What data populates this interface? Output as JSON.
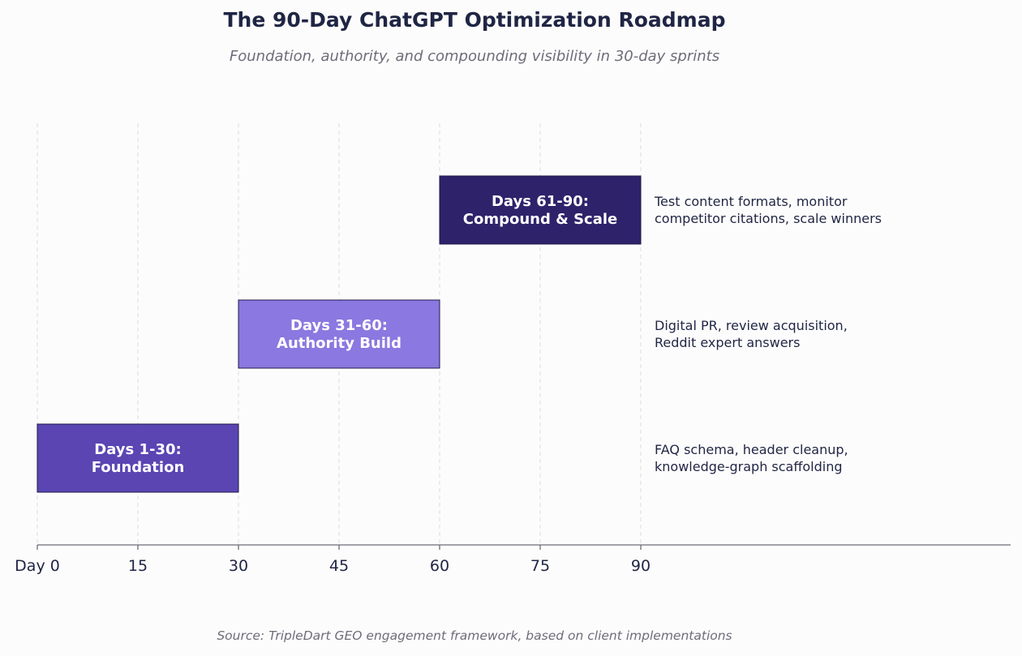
{
  "header": {
    "title": "The 90-Day ChatGPT Optimization Roadmap",
    "subtitle": "Foundation, authority, and compounding visibility in 30-day sprints"
  },
  "footer": {
    "source": "Source: TripleDart GEO engagement framework, based on client implementations"
  },
  "colors": {
    "phase1": "#5a45b3",
    "phase2": "#8b78e0",
    "phase3": "#2e226b",
    "text": "#1f2544",
    "grid": "#dddddd",
    "axis": "#6d6d7a"
  },
  "chart_data": {
    "type": "gantt",
    "title": "The 90-Day ChatGPT Optimization Roadmap",
    "subtitle": "Foundation, authority, and compounding visibility in 30-day sprints",
    "xlim": [
      0,
      90
    ],
    "x_ticks": [
      0,
      15,
      30,
      45,
      60,
      75,
      90
    ],
    "x_tick_labels": [
      "Day 0",
      "15",
      "30",
      "45",
      "60",
      "75",
      "90"
    ],
    "grid": "vertical dashed",
    "phases": [
      {
        "start": 0,
        "end": 30,
        "label_lines": [
          "Days 1-30:",
          "Foundation"
        ],
        "description_lines": [
          "FAQ schema, header cleanup,",
          "knowledge-graph scaffolding"
        ],
        "color": "#5a45b3"
      },
      {
        "start": 30,
        "end": 60,
        "label_lines": [
          "Days 31-60:",
          "Authority Build"
        ],
        "description_lines": [
          "Digital PR, review acquisition,",
          "Reddit expert answers"
        ],
        "color": "#8b78e0"
      },
      {
        "start": 60,
        "end": 90,
        "label_lines": [
          "Days 61-90:",
          "Compound & Scale"
        ],
        "description_lines": [
          "Test content formats, monitor",
          "competitor citations, scale winners"
        ],
        "color": "#2e226b"
      }
    ]
  }
}
